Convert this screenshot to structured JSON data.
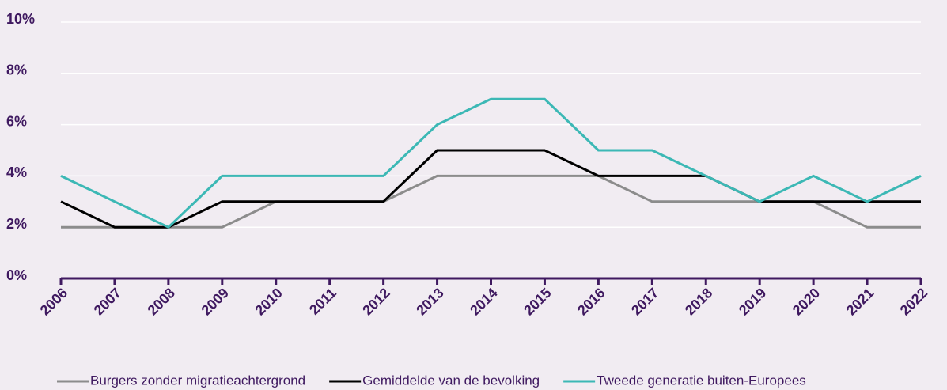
{
  "chart_data": {
    "type": "line",
    "categories": [
      "2006",
      "2007",
      "2008",
      "2009",
      "2010",
      "2011",
      "2012",
      "2013",
      "2014",
      "2015",
      "2016",
      "2017",
      "2018",
      "2019",
      "2020",
      "2021",
      "2022"
    ],
    "series": [
      {
        "name": "Burgers zonder migratieachtergrond",
        "color": "#8c8c8c",
        "values": [
          2,
          2,
          2,
          2,
          3,
          3,
          3,
          4,
          4,
          4,
          4,
          3,
          3,
          3,
          3,
          2,
          2
        ]
      },
      {
        "name": "Gemiddelde van de bevolking",
        "color": "#000000",
        "values": [
          3,
          2,
          2,
          3,
          3,
          3,
          3,
          5,
          5,
          5,
          4,
          4,
          4,
          3,
          3,
          3,
          3
        ]
      },
      {
        "name": "Tweede generatie buiten-Europees",
        "color": "#3cb8b5",
        "values": [
          4,
          3,
          2,
          4,
          4,
          4,
          4,
          6,
          7,
          7,
          5,
          5,
          4,
          3,
          4,
          3,
          4
        ]
      }
    ],
    "ylim": [
      0,
      10
    ],
    "yticks": [
      {
        "value": 0,
        "label": "0%"
      },
      {
        "value": 2,
        "label": "2%"
      },
      {
        "value": 4,
        "label": "4%"
      },
      {
        "value": 6,
        "label": "6%"
      },
      {
        "value": 8,
        "label": "8%"
      },
      {
        "value": 10,
        "label": "10%"
      }
    ],
    "grid": true,
    "legend": "bottom",
    "axis_color": "#3f1960"
  }
}
